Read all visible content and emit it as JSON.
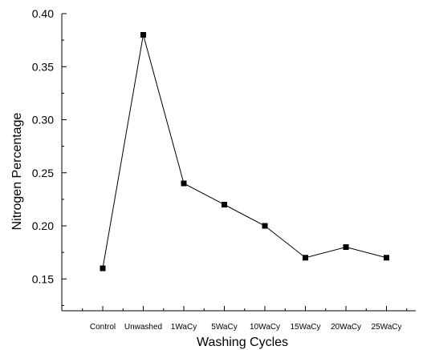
{
  "chart_data": {
    "type": "line",
    "title": "",
    "xlabel": "Washing Cycles",
    "ylabel": "Nitrogen Percentage",
    "categories": [
      "Control",
      "Unwashed",
      "1WaCy",
      "5WaCy",
      "10WaCy",
      "15WaCy",
      "20WaCy",
      "25WaCy"
    ],
    "values": [
      0.16,
      0.38,
      0.24,
      0.22,
      0.2,
      0.17,
      0.18,
      0.17
    ],
    "ylim": [
      0.12,
      0.4
    ],
    "y_ticks": [
      "0.15",
      "0.20",
      "0.25",
      "0.30",
      "0.35",
      "0.40"
    ],
    "y_tick_values": [
      0.15,
      0.2,
      0.25,
      0.3,
      0.35,
      0.4
    ],
    "marker": "square",
    "grid": false,
    "line_color": "#000000",
    "marker_color": "#000000"
  }
}
